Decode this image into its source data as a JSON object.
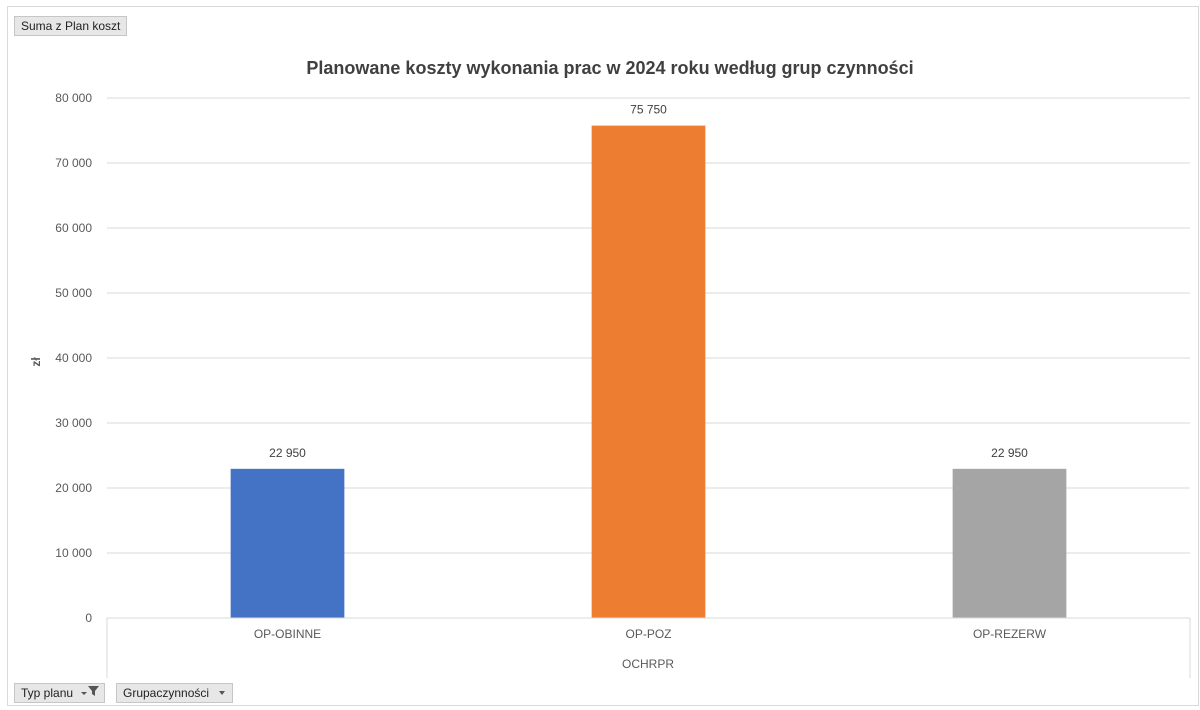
{
  "pivot": {
    "value_field": "Suma z Plan koszt",
    "filter_field": "Typ planu",
    "axis_field": "Grupaczynności"
  },
  "chart_data": {
    "type": "bar",
    "title": "Planowane koszty wykonania prac w 2024 roku według grup czynności",
    "ylabel": "zł",
    "xlabel": "OCHRPR",
    "categories": [
      "OP-OBINNE",
      "OP-POZ",
      "OP-REZERW"
    ],
    "values": [
      22950,
      75750,
      22950
    ],
    "value_labels": [
      "22 950",
      "75 750",
      "22 950"
    ],
    "colors": [
      "#4472c4",
      "#ed7d31",
      "#a5a5a5"
    ],
    "ylim": [
      0,
      80000
    ],
    "yticks": [
      0,
      10000,
      20000,
      30000,
      40000,
      50000,
      60000,
      70000,
      80000
    ],
    "ytick_labels": [
      "0",
      "10 000",
      "20 000",
      "30 000",
      "40 000",
      "50 000",
      "60 000",
      "70 000",
      "80 000"
    ],
    "grid": true,
    "legend": "none"
  }
}
